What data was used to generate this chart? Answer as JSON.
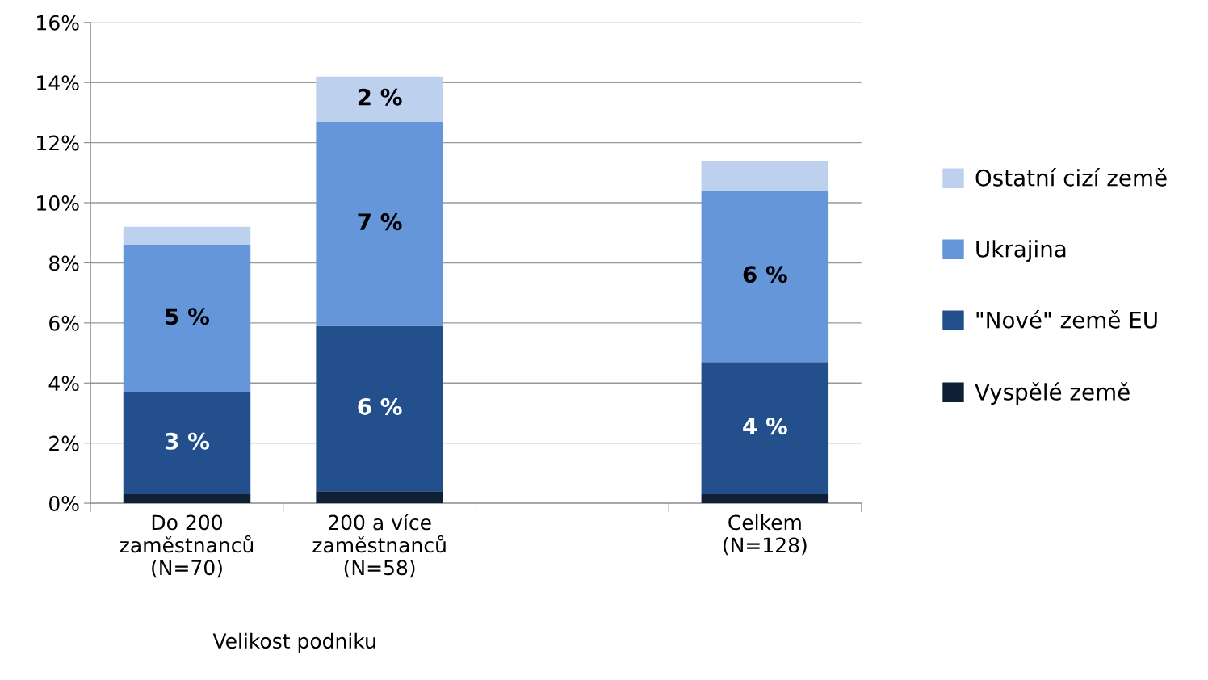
{
  "chart_data": {
    "type": "bar",
    "stacked": true,
    "xlabel": "Velikost podniku",
    "categories": [
      "Do 200\nzaměstnanců\n(N=70)",
      "200 a více\nzaměstnanců\n(N=58)",
      null,
      "Celkem\n(N=128)"
    ],
    "series": [
      {
        "name": "Vyspělé země",
        "color": "#0f1f36",
        "values": [
          0.3,
          0.4,
          null,
          0.3
        ],
        "value_labels": [
          null,
          null,
          null,
          null
        ]
      },
      {
        "name": "\"Nové\" země EU",
        "color": "#23508c",
        "values": [
          3.4,
          5.5,
          null,
          4.4
        ],
        "value_labels": [
          "3 %",
          "6 %",
          null,
          "4 %"
        ]
      },
      {
        "name": "Ukrajina",
        "color": "#6496d9",
        "values": [
          4.9,
          6.8,
          null,
          5.7
        ],
        "value_labels": [
          "5 %",
          "7 %",
          null,
          "6 %"
        ]
      },
      {
        "name": "Ostatní cizí země",
        "color": "#bdd1ee",
        "values": [
          0.6,
          1.5,
          null,
          1.0
        ],
        "value_labels": [
          null,
          "2 %",
          null,
          null
        ]
      }
    ],
    "ylim": [
      0,
      16
    ],
    "yticks": [
      {
        "value": 0,
        "label": "0%"
      },
      {
        "value": 2,
        "label": "2%"
      },
      {
        "value": 4,
        "label": "4%"
      },
      {
        "value": 6,
        "label": "6%"
      },
      {
        "value": 8,
        "label": "8%"
      },
      {
        "value": 10,
        "label": "10%"
      },
      {
        "value": 12,
        "label": "12%"
      },
      {
        "value": 14,
        "label": "14%"
      },
      {
        "value": 16,
        "label": "16%"
      }
    ],
    "grid": "y",
    "legend": "right"
  }
}
